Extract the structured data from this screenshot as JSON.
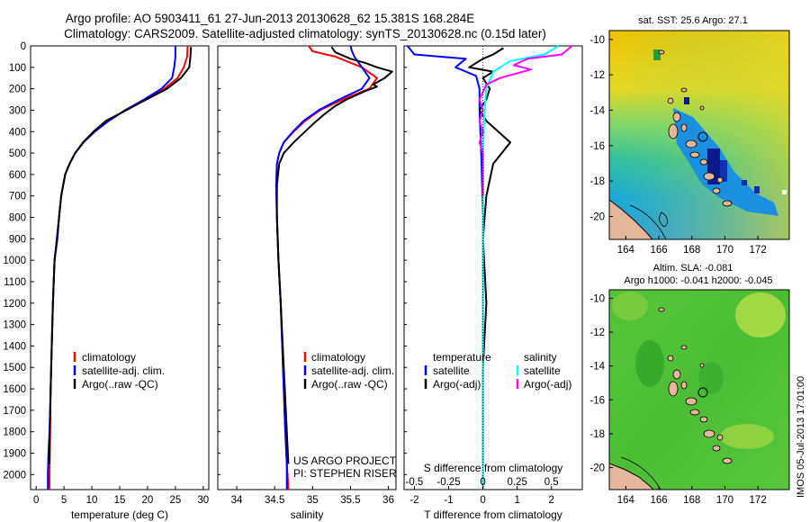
{
  "figure": {
    "title_line1": "Argo profile: AO 5903411_61 27-Jun-2013 20130628_62 15.381S 168.284E",
    "title_line2": "Climatology: CARS2009. Satellite-adjusted climatology: synTS_20130628.nc (0.15d later)",
    "project_line1": "US ARGO PROJECT",
    "project_line2": "PI: STEPHEN RISER",
    "timestamp": "IMOS 05-Jul-2013 17:01:00"
  },
  "colors": {
    "climatology": "#ff0000",
    "satellite": "#0000ff",
    "argo": "#000000",
    "sal_satellite": "#00ffff",
    "sal_argo": "#ff00ff"
  },
  "chart_data": [
    {
      "id": "temperature",
      "type": "line",
      "xlabel": "temperature (deg C)",
      "ylabel": "",
      "xlim": [
        -1,
        31
      ],
      "ylim": [
        2070,
        0
      ],
      "xticks": [
        0,
        5,
        10,
        15,
        20,
        25,
        30
      ],
      "xtick_labels": [
        "0",
        "5",
        "10",
        "15",
        "20",
        "25",
        "30"
      ],
      "yticks": [
        0,
        100,
        200,
        300,
        400,
        500,
        600,
        700,
        800,
        900,
        1000,
        1100,
        1200,
        1300,
        1400,
        1500,
        1600,
        1700,
        1800,
        1900,
        2000
      ],
      "ytick_labels": [
        "0",
        "100",
        "200",
        "300",
        "400",
        "500",
        "600",
        "700",
        "800",
        "900",
        "1000",
        "1100",
        "1200",
        "1300",
        "1400",
        "1500",
        "1600",
        "1700",
        "1800",
        "1900",
        "2000"
      ],
      "legend": [
        "climatology",
        "satellite-adj. clim.",
        "Argo(..raw -QC)"
      ],
      "series": [
        {
          "name": "climatology",
          "color_key": "climatology",
          "x": [
            27.2,
            27.1,
            26.5,
            25.4,
            23.0,
            19.5,
            16.0,
            13.0,
            10.5,
            8.5,
            7.0,
            6.0,
            5.2,
            4.5,
            4.1,
            3.8,
            3.3,
            3.0,
            2.8,
            2.6,
            2.5,
            2.45,
            2.4,
            2.4
          ],
          "y": [
            0,
            50,
            100,
            150,
            200,
            250,
            300,
            350,
            400,
            450,
            500,
            550,
            600,
            700,
            800,
            900,
            1000,
            1200,
            1400,
            1600,
            1800,
            1900,
            2000,
            2070
          ]
        },
        {
          "name": "satellite-adj. clim.",
          "color_key": "satellite",
          "x": [
            25.0,
            25.0,
            24.8,
            24.4,
            22.5,
            19.4,
            16.0,
            13.0,
            10.5,
            8.5,
            7.0,
            6.0,
            5.2,
            4.5,
            4.1,
            3.7,
            3.3,
            3.0,
            2.8,
            2.6,
            2.4,
            2.2,
            2.1,
            2.1
          ],
          "y": [
            0,
            50,
            100,
            150,
            200,
            250,
            300,
            350,
            400,
            450,
            500,
            550,
            600,
            700,
            800,
            900,
            1000,
            1200,
            1400,
            1600,
            1800,
            1900,
            2000,
            2070
          ]
        },
        {
          "name": "Argo(..raw -QC)",
          "color_key": "argo",
          "x": [
            27.8,
            27.7,
            27.5,
            26.0,
            23.5,
            19.8,
            16.2,
            12.5,
            10.3,
            8.4,
            7.0,
            6.0,
            5.2,
            4.5,
            4.1,
            3.8,
            3.3,
            3.0,
            2.8,
            2.6,
            2.45,
            2.4
          ],
          "y": [
            5,
            50,
            100,
            150,
            200,
            250,
            300,
            350,
            400,
            450,
            500,
            550,
            600,
            700,
            800,
            900,
            1000,
            1200,
            1400,
            1600,
            1800,
            1950
          ]
        }
      ]
    },
    {
      "id": "salinity",
      "type": "line",
      "xlabel": "salinity",
      "ylabel": "",
      "xlim": [
        33.75,
        36.1
      ],
      "ylim": [
        2070,
        0
      ],
      "xticks": [
        34,
        34.5,
        35,
        35.5,
        36
      ],
      "xtick_labels": [
        "34",
        "34.5",
        "35",
        "35.5",
        "36"
      ],
      "legend": [
        "climatology",
        "satellite-adj. clim.",
        "Argo(..raw -QC)"
      ],
      "series": [
        {
          "name": "climatology",
          "color_key": "climatology",
          "x": [
            34.95,
            35.0,
            35.3,
            35.65,
            35.85,
            35.75,
            35.4,
            35.1,
            34.9,
            34.75,
            34.62,
            34.56,
            34.53,
            34.52,
            34.53,
            34.55,
            34.58,
            34.6,
            34.62,
            34.64,
            34.66,
            34.67,
            34.68
          ],
          "y": [
            0,
            25,
            50,
            100,
            150,
            200,
            250,
            300,
            350,
            400,
            450,
            500,
            550,
            650,
            800,
            1000,
            1200,
            1400,
            1600,
            1800,
            1950,
            2000,
            2070
          ]
        },
        {
          "name": "satellite-adj. clim.",
          "color_key": "satellite",
          "x": [
            35.5,
            35.52,
            35.55,
            35.65,
            35.75,
            35.65,
            35.35,
            35.08,
            34.88,
            34.74,
            34.62,
            34.56,
            34.53,
            34.52,
            34.53,
            34.55,
            34.58,
            34.6,
            34.62,
            34.64,
            34.66,
            34.66
          ],
          "y": [
            0,
            25,
            50,
            100,
            150,
            200,
            250,
            300,
            350,
            400,
            450,
            500,
            550,
            650,
            800,
            1000,
            1200,
            1400,
            1600,
            1800,
            1950,
            2070
          ]
        },
        {
          "name": "Argo(..raw -QC)",
          "color_key": "argo",
          "x": [
            35.25,
            35.3,
            35.5,
            35.7,
            35.85,
            36.05,
            35.95,
            35.8,
            35.85,
            35.7,
            35.45,
            35.3,
            35.15,
            35.02,
            34.9,
            34.75,
            34.62,
            34.56,
            34.53,
            34.53,
            34.55,
            34.58,
            34.62,
            34.66,
            34.68
          ],
          "y": [
            5,
            30,
            60,
            80,
            100,
            120,
            150,
            180,
            190,
            210,
            250,
            280,
            320,
            360,
            400,
            450,
            500,
            550,
            650,
            800,
            1000,
            1200,
            1500,
            1800,
            1950
          ]
        }
      ]
    },
    {
      "id": "difference",
      "type": "line",
      "xlabel": "T difference from climatology",
      "xlabel_top": "S difference from climatology",
      "xlim": [
        -2.3,
        2.9
      ],
      "ylim": [
        2070,
        0
      ],
      "xticks": [
        -2,
        -1,
        0,
        1,
        2
      ],
      "xtick_labels": [
        "-2",
        "-1",
        "0",
        "1",
        "2"
      ],
      "s_ticks": [
        -0.5,
        -0.25,
        0,
        0.25,
        0.5
      ],
      "s_tick_labels": [
        "-0.5",
        "-0.25",
        "0",
        "0.25",
        "0.5"
      ],
      "s_scale": 4,
      "legend_temperature_title": "temperature",
      "legend_salinity_title": "salinity",
      "legend_temperature": [
        "satellite",
        "Argo(-adj)"
      ],
      "legend_salinity": [
        "satellite",
        "Argo(-adj)"
      ],
      "series": [
        {
          "name": "temperature satellite",
          "color_key": "satellite",
          "x": [
            -2.2,
            -2.0,
            -0.5,
            -0.8,
            -0.2,
            -0.1,
            -0.1,
            -0.05,
            0.0,
            0.0,
            0.0,
            0.0
          ],
          "y": [
            0,
            40,
            60,
            100,
            140,
            200,
            300,
            500,
            800,
            1200,
            1600,
            2070
          ]
        },
        {
          "name": "temperature Argo(-adj)",
          "color_key": "argo",
          "x": [
            0.6,
            0.3,
            0.0,
            -0.4,
            0.3,
            0.0,
            0.2,
            0.1,
            -0.1,
            0.1,
            0.8,
            0.3,
            0.1,
            0.0,
            0.1,
            0.0,
            0.0,
            0.0
          ],
          "y": [
            10,
            40,
            60,
            100,
            120,
            150,
            200,
            250,
            300,
            350,
            450,
            550,
            700,
            900,
            1200,
            1500,
            1800,
            1950
          ]
        },
        {
          "name": "salinity satellite",
          "color_key": "sal_satellite",
          "x": [
            2.2,
            1.8,
            0.8,
            0.3,
            0.1,
            0.05,
            0.0,
            0.0,
            0.0,
            0.0,
            0.0
          ],
          "y": [
            0,
            40,
            70,
            120,
            200,
            300,
            500,
            800,
            1200,
            1600,
            2070
          ]
        },
        {
          "name": "salinity Argo(-adj)",
          "color_key": "sal_argo",
          "x": [
            2.6,
            2.3,
            1.3,
            0.9,
            1.4,
            0.5,
            0.1,
            -0.1,
            0.0,
            -0.1,
            0.0,
            -0.1,
            0.0,
            0.0,
            0.0
          ],
          "y": [
            0,
            40,
            60,
            90,
            110,
            150,
            180,
            250,
            300,
            350,
            400,
            450,
            500,
            600,
            700
          ]
        }
      ]
    },
    {
      "id": "sst_map",
      "type": "heatmap",
      "title": "sat. SST: 25.6 Argo: 27.1",
      "xlim": [
        163,
        173.9
      ],
      "ylim": [
        -21.3,
        -9.5
      ],
      "xticks": [
        164,
        166,
        168,
        170,
        172
      ],
      "xtick_labels": [
        "164",
        "166",
        "168",
        "170",
        "172"
      ],
      "yticks": [
        -10,
        -12,
        -14,
        -16,
        -18,
        -20
      ],
      "ytick_labels": [
        "-10",
        "-12",
        "-14",
        "-16",
        "-18",
        "-20"
      ],
      "argo_position": [
        168.284,
        -15.381
      ]
    },
    {
      "id": "sla_map",
      "type": "heatmap",
      "title_line1": "Altim. SLA: -0.081",
      "title_line2": "Argo h1000: -0.041 h2000: -0.045",
      "xlim": [
        163,
        173.9
      ],
      "ylim": [
        -21.3,
        -9.5
      ],
      "xticks": [
        164,
        166,
        168,
        170,
        172
      ],
      "xtick_labels": [
        "164",
        "166",
        "168",
        "170",
        "172"
      ],
      "yticks": [
        -10,
        -12,
        -14,
        -16,
        -18,
        -20
      ],
      "ytick_labels": [
        "-10",
        "-12",
        "-14",
        "-16",
        "-18",
        "-20"
      ],
      "argo_position": [
        168.284,
        -15.381
      ]
    }
  ]
}
